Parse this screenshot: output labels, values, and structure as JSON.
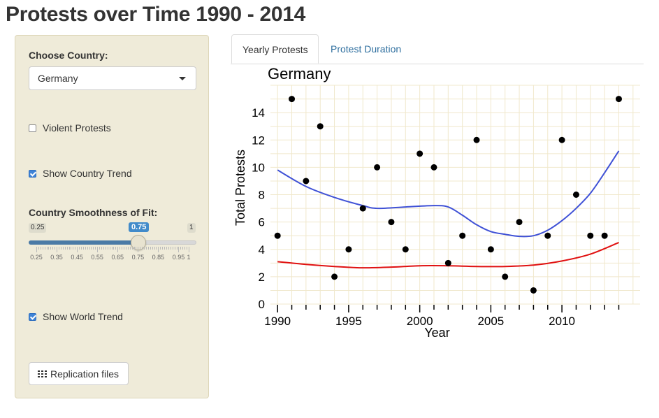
{
  "page": {
    "title": "Protests over Time 1990 - 2014"
  },
  "sidebar": {
    "country_label": "Choose Country:",
    "country_selected": "Germany",
    "violent_label": "Violent Protests",
    "violent_checked": false,
    "country_trend_label": "Show Country Trend",
    "country_trend_checked": true,
    "smoothness_label": "Country Smoothness of Fit:",
    "slider": {
      "min_label": "0.25",
      "max_label": "1",
      "value_label": "0.75",
      "min": 0.25,
      "max": 1,
      "value": 0.75,
      "tick_labels": [
        "0.25",
        "0.35",
        "0.45",
        "0.55",
        "0.65",
        "0.75",
        "0.85",
        "0.95",
        "1"
      ]
    },
    "world_trend_label": "Show World Trend",
    "world_trend_checked": true,
    "replication_label": "Replication files"
  },
  "tabs": [
    {
      "label": "Yearly Protests",
      "active": true
    },
    {
      "label": "Protest Duration",
      "active": false
    }
  ],
  "colors": {
    "country_trend": "#3f51d6",
    "world_trend": "#e01010",
    "points": "#000000",
    "grid": "#f0e8cc"
  },
  "chart_data": {
    "type": "scatter",
    "title": "Germany",
    "xlabel": "Year",
    "ylabel": "Total Protests",
    "xlim": [
      1989.5,
      2015.5
    ],
    "ylim": [
      0,
      16
    ],
    "x_ticks": [
      1990,
      1995,
      2000,
      2005,
      2010
    ],
    "y_ticks": [
      0,
      2,
      4,
      6,
      8,
      10,
      12,
      14
    ],
    "grid": true,
    "points": [
      {
        "x": 1990,
        "y": 5
      },
      {
        "x": 1991,
        "y": 15
      },
      {
        "x": 1992,
        "y": 9
      },
      {
        "x": 1993,
        "y": 13
      },
      {
        "x": 1994,
        "y": 2
      },
      {
        "x": 1995,
        "y": 4
      },
      {
        "x": 1996,
        "y": 7
      },
      {
        "x": 1997,
        "y": 10
      },
      {
        "x": 1998,
        "y": 6
      },
      {
        "x": 1999,
        "y": 4
      },
      {
        "x": 2000,
        "y": 11
      },
      {
        "x": 2001,
        "y": 10
      },
      {
        "x": 2002,
        "y": 3
      },
      {
        "x": 2003,
        "y": 5
      },
      {
        "x": 2004,
        "y": 12
      },
      {
        "x": 2005,
        "y": 4
      },
      {
        "x": 2006,
        "y": 2
      },
      {
        "x": 2007,
        "y": 6
      },
      {
        "x": 2008,
        "y": 1
      },
      {
        "x": 2009,
        "y": 5
      },
      {
        "x": 2010,
        "y": 12
      },
      {
        "x": 2011,
        "y": 8
      },
      {
        "x": 2012,
        "y": 5
      },
      {
        "x": 2013,
        "y": 5
      },
      {
        "x": 2014,
        "y": 15
      }
    ],
    "series": [
      {
        "x": [
          1990,
          1992,
          1994,
          1996,
          1997,
          1999,
          2001,
          2002,
          2003,
          2004,
          2005,
          2006,
          2007,
          2008,
          2009,
          2010,
          2011,
          2012,
          2013,
          2014
        ],
        "y": [
          9.8,
          8.6,
          7.8,
          7.2,
          7.0,
          7.1,
          7.2,
          7.1,
          6.5,
          5.8,
          5.3,
          5.1,
          4.95,
          5.0,
          5.4,
          6.1,
          7.0,
          8.1,
          9.6,
          11.2
        ]
      },
      {
        "x": [
          1990,
          1992,
          1994,
          1996,
          1998,
          2000,
          2002,
          2004,
          2006,
          2008,
          2010,
          2012,
          2014
        ],
        "y": [
          3.1,
          2.9,
          2.75,
          2.65,
          2.7,
          2.8,
          2.8,
          2.75,
          2.75,
          2.85,
          3.15,
          3.65,
          4.5
        ]
      }
    ]
  }
}
